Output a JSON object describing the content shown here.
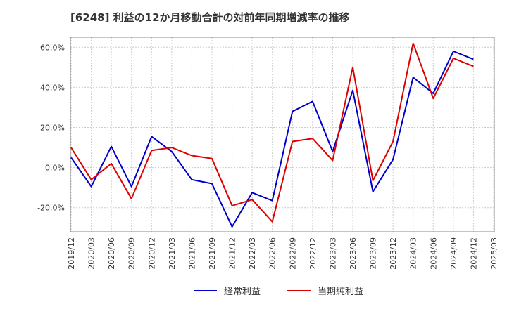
{
  "chart_data": {
    "type": "line",
    "title": "[6248]  利益の12か月移動合計の対前年同期増減率の推移",
    "x": [
      "2019/12",
      "2020/03",
      "2020/06",
      "2020/09",
      "2020/12",
      "2021/03",
      "2021/06",
      "2021/09",
      "2021/12",
      "2022/03",
      "2022/06",
      "2022/09",
      "2022/12",
      "2023/03",
      "2023/06",
      "2023/09",
      "2023/12",
      "2024/03",
      "2024/06",
      "2024/09",
      "2024/12",
      "2025/03"
    ],
    "y_tick_labels": [
      "-20.0%",
      "0.0%",
      "20.0%",
      "40.0%",
      "60.0%"
    ],
    "y_ticks": [
      -20,
      0,
      20,
      40,
      60
    ],
    "ylim": [
      -32,
      65
    ],
    "grid": true,
    "legend_position": "bottom",
    "series": [
      {
        "name": "経常利益",
        "color": "#0000cc",
        "values": [
          5,
          -9.5,
          10.5,
          -9.5,
          15.5,
          8,
          -6,
          -8,
          -29.5,
          -12.5,
          -16.5,
          28,
          33,
          8,
          38.5,
          -12,
          4,
          45,
          37,
          58,
          54,
          null
        ]
      },
      {
        "name": "当期純利益",
        "color": "#dd0000",
        "values": [
          10,
          -6,
          2,
          -15.5,
          8.5,
          10,
          6,
          4.5,
          -19,
          -16,
          -27,
          13,
          14.5,
          3.5,
          50,
          -6.5,
          13,
          62,
          34.5,
          54.5,
          50.5,
          null
        ]
      }
    ]
  }
}
